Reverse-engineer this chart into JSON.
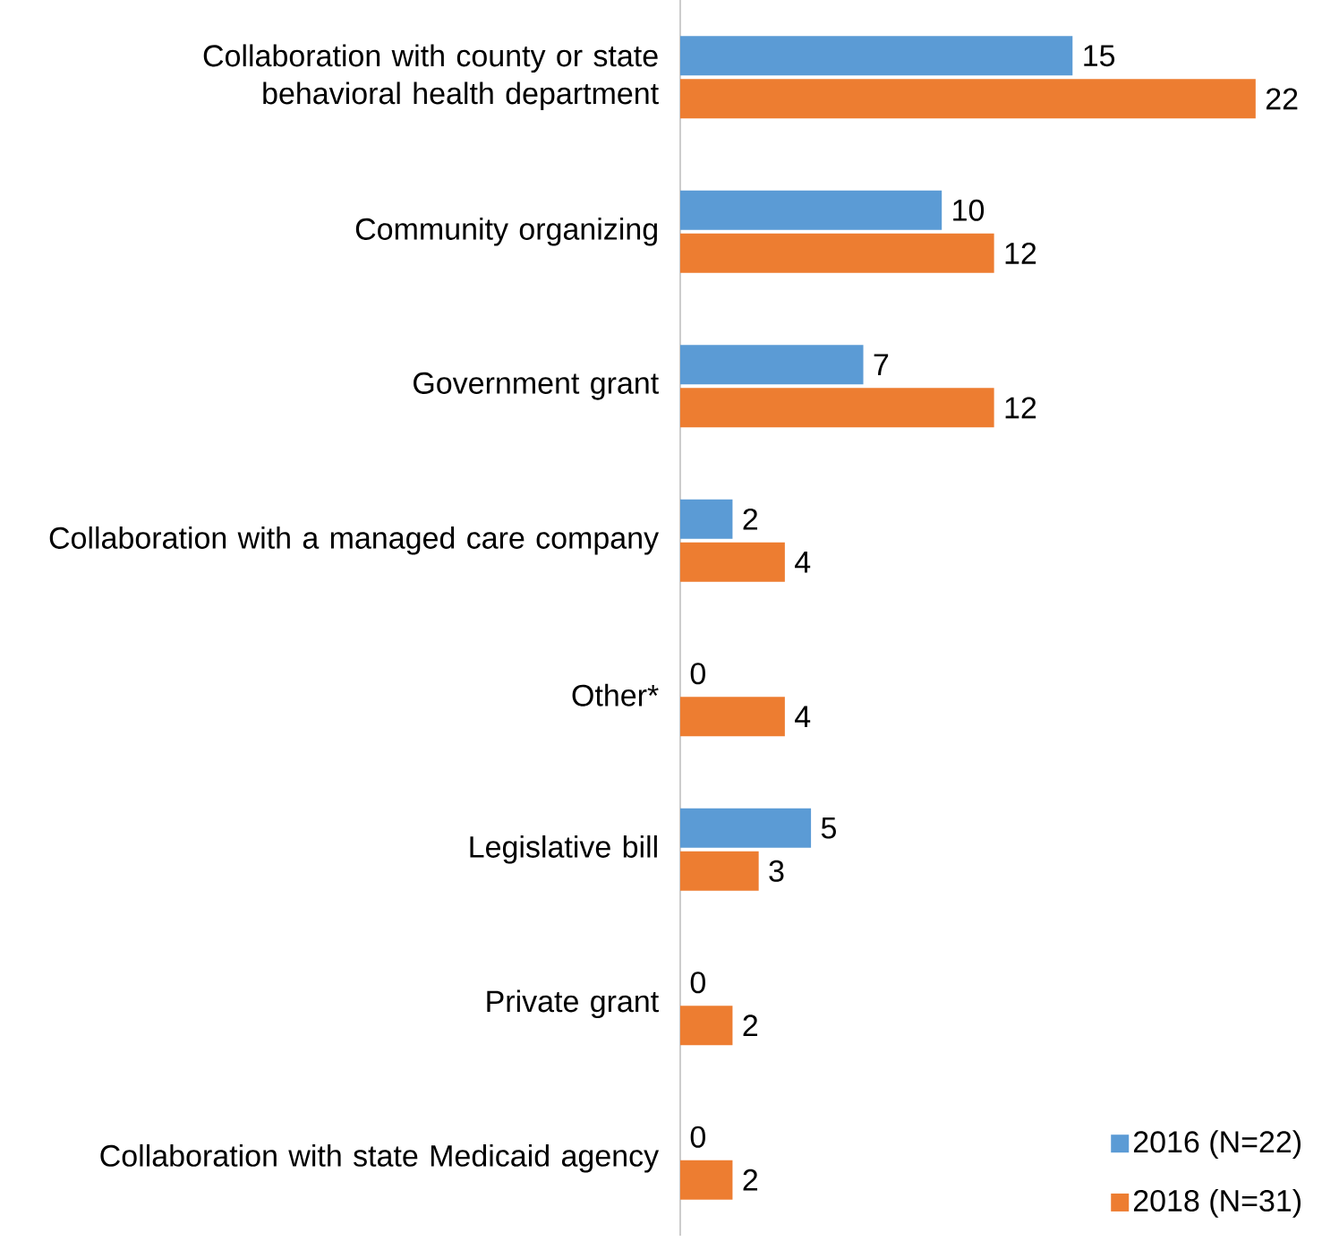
{
  "chart_data": {
    "type": "bar",
    "orientation": "horizontal",
    "categories": [
      "Collaboration with county or state behavioral health department",
      "Community organizing",
      "Government grant",
      "Collaboration with a managed care company",
      "Other*",
      "Legislative bill",
      "Private grant",
      "Collaboration with state Medicaid agency"
    ],
    "series": [
      {
        "name": "2016 (N=22)",
        "color": "#5b9bd5",
        "values": [
          15,
          10,
          7,
          2,
          0,
          5,
          0,
          0
        ]
      },
      {
        "name": "2018 (N=31)",
        "color": "#ed7d31",
        "values": [
          22,
          12,
          12,
          4,
          4,
          3,
          2,
          2
        ]
      }
    ],
    "data_labels": true,
    "legend": "bottom right"
  }
}
